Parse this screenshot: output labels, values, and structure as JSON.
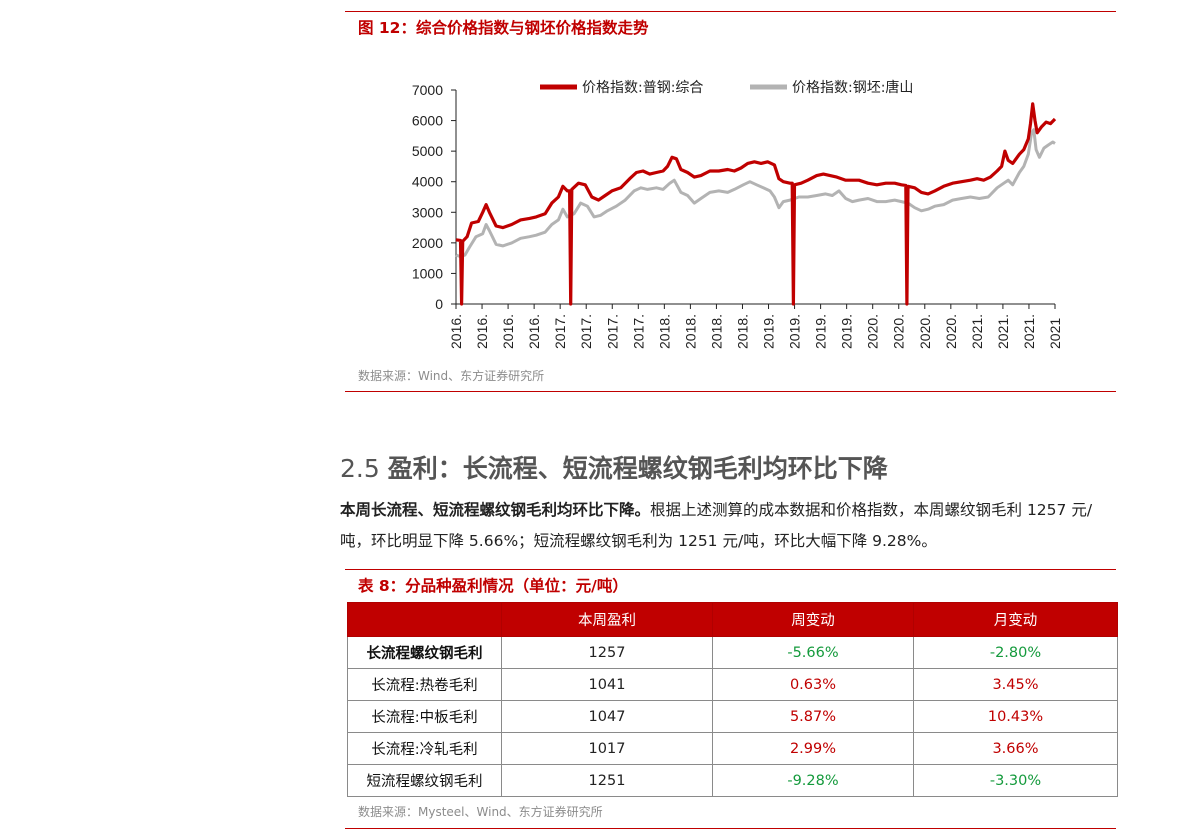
{
  "figure": {
    "title": "图 12：综合价格指数与钢坯价格指数走势",
    "source": "数据来源：Wind、东方证券研究所"
  },
  "chart_data": {
    "type": "line",
    "legend_position": "top",
    "x_tick_labels": [
      "2016.",
      "2016.",
      "2016.",
      "2016.",
      "2017.",
      "2017.",
      "2017.",
      "2017.",
      "2018.",
      "2018.",
      "2018.",
      "2018.",
      "2019.",
      "2019.",
      "2019.",
      "2019.",
      "2020.",
      "2020.",
      "2020.",
      "2020.",
      "2021.",
      "2021.",
      "2021.",
      "2021"
    ],
    "y_ticks": [
      0,
      1000,
      2000,
      3000,
      4000,
      5000,
      6000,
      7000
    ],
    "ylim": [
      0,
      7000
    ],
    "xlim": [
      2016.0,
      2021.38
    ],
    "series": [
      {
        "name": "价格指数:普钢:综合",
        "color": "#c00000",
        "points": [
          [
            2016.0,
            2100
          ],
          [
            2016.04,
            2080
          ],
          [
            2016.05,
            0
          ],
          [
            2016.06,
            2050
          ],
          [
            2016.1,
            2200
          ],
          [
            2016.14,
            2650
          ],
          [
            2016.2,
            2700
          ],
          [
            2016.24,
            3000
          ],
          [
            2016.27,
            3250
          ],
          [
            2016.3,
            3000
          ],
          [
            2016.36,
            2550
          ],
          [
            2016.42,
            2500
          ],
          [
            2016.5,
            2600
          ],
          [
            2016.58,
            2750
          ],
          [
            2016.66,
            2800
          ],
          [
            2016.72,
            2850
          ],
          [
            2016.8,
            2950
          ],
          [
            2016.86,
            3300
          ],
          [
            2016.92,
            3500
          ],
          [
            2016.96,
            3850
          ],
          [
            2017.0,
            3700
          ],
          [
            2017.02,
            3700
          ],
          [
            2017.03,
            0
          ],
          [
            2017.04,
            3750
          ],
          [
            2017.1,
            3950
          ],
          [
            2017.16,
            3900
          ],
          [
            2017.22,
            3500
          ],
          [
            2017.28,
            3400
          ],
          [
            2017.34,
            3550
          ],
          [
            2017.4,
            3700
          ],
          [
            2017.48,
            3800
          ],
          [
            2017.56,
            4100
          ],
          [
            2017.62,
            4300
          ],
          [
            2017.68,
            4350
          ],
          [
            2017.74,
            4250
          ],
          [
            2017.8,
            4300
          ],
          [
            2017.86,
            4350
          ],
          [
            2017.9,
            4500
          ],
          [
            2017.94,
            4800
          ],
          [
            2017.98,
            4750
          ],
          [
            2018.02,
            4400
          ],
          [
            2018.08,
            4300
          ],
          [
            2018.14,
            4150
          ],
          [
            2018.2,
            4200
          ],
          [
            2018.28,
            4350
          ],
          [
            2018.36,
            4350
          ],
          [
            2018.44,
            4400
          ],
          [
            2018.5,
            4350
          ],
          [
            2018.56,
            4450
          ],
          [
            2018.62,
            4600
          ],
          [
            2018.68,
            4650
          ],
          [
            2018.74,
            4600
          ],
          [
            2018.8,
            4650
          ],
          [
            2018.86,
            4550
          ],
          [
            2018.9,
            4100
          ],
          [
            2018.94,
            4000
          ],
          [
            2019.0,
            3950
          ],
          [
            2019.02,
            3950
          ],
          [
            2019.03,
            0
          ],
          [
            2019.04,
            3900
          ],
          [
            2019.1,
            3950
          ],
          [
            2019.16,
            4050
          ],
          [
            2019.24,
            4200
          ],
          [
            2019.3,
            4250
          ],
          [
            2019.36,
            4200
          ],
          [
            2019.42,
            4150
          ],
          [
            2019.5,
            4050
          ],
          [
            2019.56,
            4050
          ],
          [
            2019.62,
            4050
          ],
          [
            2019.7,
            3950
          ],
          [
            2019.78,
            3900
          ],
          [
            2019.86,
            3950
          ],
          [
            2019.94,
            3950
          ],
          [
            2020.0,
            3900
          ],
          [
            2020.04,
            3880
          ],
          [
            2020.05,
            0
          ],
          [
            2020.06,
            3850
          ],
          [
            2020.12,
            3800
          ],
          [
            2020.18,
            3650
          ],
          [
            2020.24,
            3600
          ],
          [
            2020.3,
            3700
          ],
          [
            2020.38,
            3850
          ],
          [
            2020.46,
            3950
          ],
          [
            2020.54,
            4000
          ],
          [
            2020.62,
            4050
          ],
          [
            2020.68,
            4100
          ],
          [
            2020.74,
            4050
          ],
          [
            2020.8,
            4150
          ],
          [
            2020.86,
            4350
          ],
          [
            2020.9,
            4500
          ],
          [
            2020.93,
            5000
          ],
          [
            2020.96,
            4700
          ],
          [
            2021.0,
            4600
          ],
          [
            2021.06,
            4900
          ],
          [
            2021.1,
            5050
          ],
          [
            2021.14,
            5400
          ],
          [
            2021.16,
            5900
          ],
          [
            2021.18,
            6550
          ],
          [
            2021.2,
            6000
          ],
          [
            2021.22,
            5600
          ],
          [
            2021.26,
            5800
          ],
          [
            2021.3,
            5950
          ],
          [
            2021.34,
            5900
          ],
          [
            2021.38,
            6050
          ]
        ]
      },
      {
        "name": "价格指数:钢坯:唐山",
        "color": "#b3b3b3",
        "points": [
          [
            2016.0,
            1600
          ],
          [
            2016.04,
            1550
          ],
          [
            2016.08,
            1600
          ],
          [
            2016.12,
            1850
          ],
          [
            2016.18,
            2200
          ],
          [
            2016.24,
            2300
          ],
          [
            2016.27,
            2600
          ],
          [
            2016.3,
            2400
          ],
          [
            2016.36,
            1950
          ],
          [
            2016.42,
            1900
          ],
          [
            2016.5,
            2000
          ],
          [
            2016.58,
            2150
          ],
          [
            2016.66,
            2200
          ],
          [
            2016.72,
            2250
          ],
          [
            2016.8,
            2350
          ],
          [
            2016.86,
            2600
          ],
          [
            2016.92,
            2750
          ],
          [
            2016.96,
            3100
          ],
          [
            2017.0,
            2850
          ],
          [
            2017.06,
            2950
          ],
          [
            2017.12,
            3300
          ],
          [
            2017.18,
            3200
          ],
          [
            2017.24,
            2850
          ],
          [
            2017.3,
            2900
          ],
          [
            2017.36,
            3050
          ],
          [
            2017.44,
            3200
          ],
          [
            2017.52,
            3400
          ],
          [
            2017.6,
            3700
          ],
          [
            2017.66,
            3800
          ],
          [
            2017.72,
            3750
          ],
          [
            2017.8,
            3800
          ],
          [
            2017.86,
            3750
          ],
          [
            2017.92,
            3950
          ],
          [
            2017.96,
            4050
          ],
          [
            2018.02,
            3650
          ],
          [
            2018.08,
            3550
          ],
          [
            2018.14,
            3300
          ],
          [
            2018.2,
            3450
          ],
          [
            2018.28,
            3650
          ],
          [
            2018.36,
            3700
          ],
          [
            2018.44,
            3650
          ],
          [
            2018.5,
            3750
          ],
          [
            2018.58,
            3900
          ],
          [
            2018.64,
            4000
          ],
          [
            2018.7,
            3900
          ],
          [
            2018.76,
            3800
          ],
          [
            2018.82,
            3700
          ],
          [
            2018.86,
            3500
          ],
          [
            2018.9,
            3150
          ],
          [
            2018.94,
            3350
          ],
          [
            2019.0,
            3400
          ],
          [
            2019.08,
            3500
          ],
          [
            2019.16,
            3500
          ],
          [
            2019.24,
            3550
          ],
          [
            2019.32,
            3600
          ],
          [
            2019.38,
            3550
          ],
          [
            2019.44,
            3700
          ],
          [
            2019.5,
            3450
          ],
          [
            2019.56,
            3350
          ],
          [
            2019.62,
            3400
          ],
          [
            2019.7,
            3450
          ],
          [
            2019.78,
            3350
          ],
          [
            2019.86,
            3350
          ],
          [
            2019.94,
            3400
          ],
          [
            2020.0,
            3350
          ],
          [
            2020.06,
            3300
          ],
          [
            2020.12,
            3150
          ],
          [
            2020.18,
            3050
          ],
          [
            2020.24,
            3100
          ],
          [
            2020.3,
            3200
          ],
          [
            2020.38,
            3250
          ],
          [
            2020.46,
            3400
          ],
          [
            2020.54,
            3450
          ],
          [
            2020.62,
            3500
          ],
          [
            2020.7,
            3450
          ],
          [
            2020.78,
            3500
          ],
          [
            2020.86,
            3800
          ],
          [
            2020.92,
            3950
          ],
          [
            2020.96,
            4050
          ],
          [
            2021.0,
            3900
          ],
          [
            2021.06,
            4300
          ],
          [
            2021.1,
            4500
          ],
          [
            2021.14,
            4900
          ],
          [
            2021.17,
            5600
          ],
          [
            2021.19,
            5700
          ],
          [
            2021.21,
            5050
          ],
          [
            2021.24,
            4800
          ],
          [
            2021.28,
            5100
          ],
          [
            2021.32,
            5200
          ],
          [
            2021.36,
            5300
          ],
          [
            2021.38,
            5250
          ]
        ]
      }
    ]
  },
  "section": {
    "number": "2.5",
    "title": "盈利：长流程、短流程螺纹钢毛利均环比下降"
  },
  "paragraph": {
    "lead": "本周长流程、短流程螺纹钢毛利均环比下降。",
    "body": "根据上述测算的成本数据和价格指数，本周螺纹钢毛利 1257 元/吨，环比明显下降 5.66%；短流程螺纹钢毛利为 1251 元/吨，环比大幅下降 9.28%。"
  },
  "table": {
    "title": "表 8：分品种盈利情况（单位：元/吨）",
    "headers": [
      "",
      "本周盈利",
      "周变动",
      "月变动"
    ],
    "rows": [
      {
        "name": "长流程螺纹钢毛利",
        "profit": "1257",
        "week": "-5.66%",
        "month": "-2.80%"
      },
      {
        "name": "长流程:热卷毛利",
        "profit": "1041",
        "week": "0.63%",
        "month": "3.45%"
      },
      {
        "name": "长流程:中板毛利",
        "profit": "1047",
        "week": "5.87%",
        "month": "10.43%"
      },
      {
        "name": "长流程:冷轧毛利",
        "profit": "1017",
        "week": "2.99%",
        "month": "3.66%"
      },
      {
        "name": "短流程螺纹钢毛利",
        "profit": "1251",
        "week": "-9.28%",
        "month": "-3.30%"
      }
    ],
    "colors": {
      "negative": "#149a3c",
      "positive": "#c00000"
    },
    "source": "数据来源：Mysteel、Wind、东方证券研究所"
  }
}
